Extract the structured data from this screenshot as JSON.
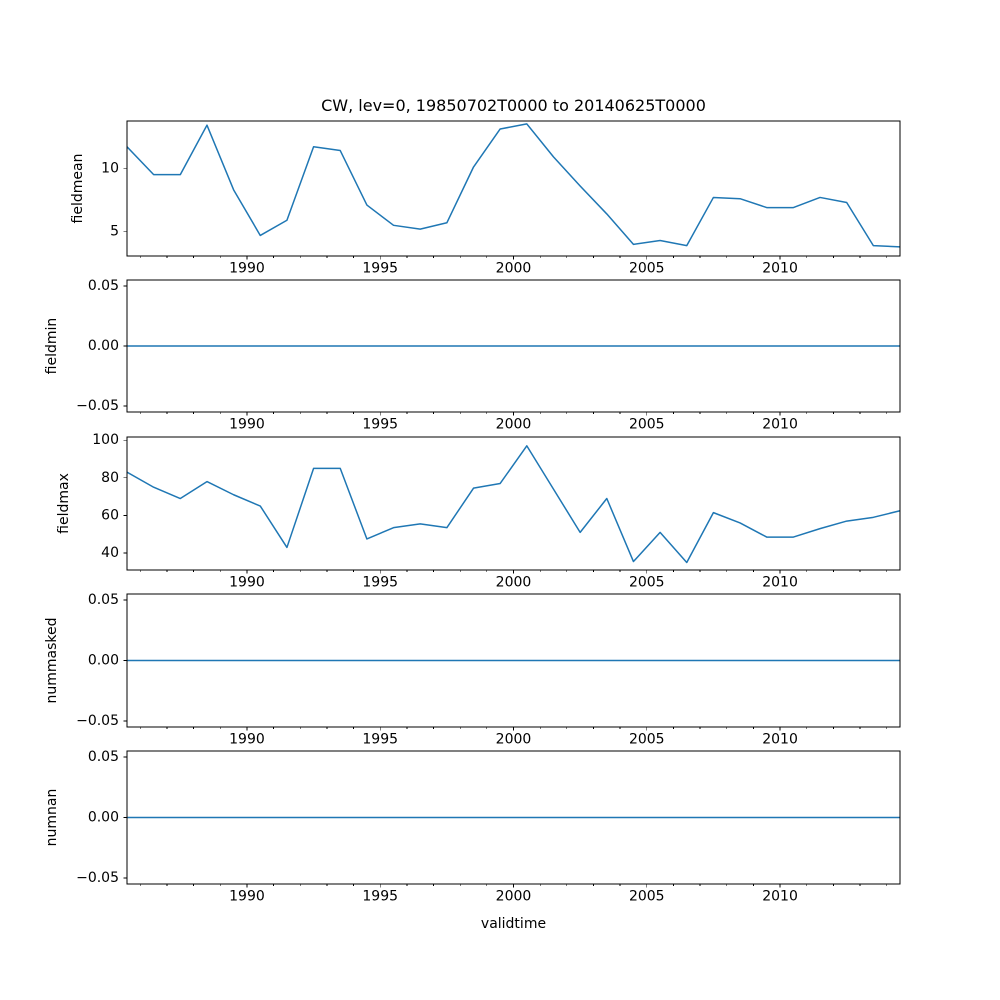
{
  "figure": {
    "title": "CW, lev=0, 19850702T0000 to 20140625T0000",
    "xlabel": "validtime"
  },
  "style": {
    "line_color": "#1f77b4",
    "axis_color": "#000000",
    "text_color": "#000000",
    "background": "#ffffff"
  },
  "chart_data": [
    {
      "type": "line",
      "name": "fieldmean",
      "ylabel": "fieldmean",
      "xlim": [
        1985.5,
        2014.5
      ],
      "xticks": [
        1990,
        1995,
        2000,
        2005,
        2010
      ],
      "xtick_labels": [
        "1990",
        "1995",
        "2000",
        "2005",
        "2010"
      ],
      "minor_xticks_every": 1,
      "ylim": [
        3.08,
        13.73
      ],
      "yticks": [
        5,
        10
      ],
      "ytick_labels": [
        "5",
        "10"
      ],
      "grid": false,
      "x": [
        1985.5,
        1986.5,
        1987.5,
        1988.5,
        1989.5,
        1990.5,
        1991.5,
        1992.5,
        1993.5,
        1994.5,
        1995.5,
        1996.5,
        1997.5,
        1998.5,
        1999.5,
        2000.5,
        2001.5,
        2002.5,
        2003.5,
        2004.5,
        2005.5,
        2006.5,
        2007.5,
        2008.5,
        2009.5,
        2010.5,
        2011.5,
        2012.5,
        2013.5,
        2014.5
      ],
      "values": [
        11.7,
        9.5,
        9.5,
        13.4,
        8.3,
        4.7,
        5.9,
        11.7,
        11.4,
        7.1,
        5.5,
        5.2,
        5.7,
        10.1,
        13.1,
        13.5,
        10.9,
        8.6,
        6.4,
        4.0,
        4.3,
        3.9,
        7.7,
        7.6,
        6.9,
        6.9,
        7.7,
        7.3,
        3.9,
        3.8
      ]
    },
    {
      "type": "line",
      "name": "fieldmin",
      "ylabel": "fieldmin",
      "xlim": [
        1985.5,
        2014.5
      ],
      "xticks": [
        1990,
        1995,
        2000,
        2005,
        2010
      ],
      "xtick_labels": [
        "1990",
        "1995",
        "2000",
        "2005",
        "2010"
      ],
      "minor_xticks_every": 1,
      "ylim": [
        -0.055,
        0.055
      ],
      "yticks": [
        -0.05,
        0.0,
        0.05
      ],
      "ytick_labels": [
        "−0.05",
        "0.00",
        "0.05"
      ],
      "grid": false,
      "x": [
        1985.5,
        1986.5,
        1987.5,
        1988.5,
        1989.5,
        1990.5,
        1991.5,
        1992.5,
        1993.5,
        1994.5,
        1995.5,
        1996.5,
        1997.5,
        1998.5,
        1999.5,
        2000.5,
        2001.5,
        2002.5,
        2003.5,
        2004.5,
        2005.5,
        2006.5,
        2007.5,
        2008.5,
        2009.5,
        2010.5,
        2011.5,
        2012.5,
        2013.5,
        2014.5
      ],
      "values": [
        0,
        0,
        0,
        0,
        0,
        0,
        0,
        0,
        0,
        0,
        0,
        0,
        0,
        0,
        0,
        0,
        0,
        0,
        0,
        0,
        0,
        0,
        0,
        0,
        0,
        0,
        0,
        0,
        0,
        0
      ]
    },
    {
      "type": "line",
      "name": "fieldmax",
      "ylabel": "fieldmax",
      "xlim": [
        1985.5,
        2014.5
      ],
      "xticks": [
        1990,
        1995,
        2000,
        2005,
        2010
      ],
      "xtick_labels": [
        "1990",
        "1995",
        "2000",
        "2005",
        "2010"
      ],
      "minor_xticks_every": 1,
      "ylim": [
        31.0,
        101.7
      ],
      "yticks": [
        40,
        60,
        80,
        100
      ],
      "ytick_labels": [
        "40",
        "60",
        "80",
        "100"
      ],
      "grid": false,
      "x": [
        1985.5,
        1986.5,
        1987.5,
        1988.5,
        1989.5,
        1990.5,
        1991.5,
        1992.5,
        1993.5,
        1994.5,
        1995.5,
        1996.5,
        1997.5,
        1998.5,
        1999.5,
        2000.5,
        2001.5,
        2002.5,
        2003.5,
        2004.5,
        2005.5,
        2006.5,
        2007.5,
        2008.5,
        2009.5,
        2010.5,
        2011.5,
        2012.5,
        2013.5,
        2014.5
      ],
      "values": [
        83,
        75,
        69,
        78,
        71,
        65,
        43,
        85,
        85,
        47.5,
        53.5,
        55.5,
        53.5,
        74.5,
        77,
        97,
        74,
        51,
        69,
        35.5,
        51,
        35,
        61.5,
        56,
        48.5,
        48.5,
        53,
        57,
        59,
        62.5
      ]
    },
    {
      "type": "line",
      "name": "nummasked",
      "ylabel": "nummasked",
      "xlim": [
        1985.5,
        2014.5
      ],
      "xticks": [
        1990,
        1995,
        2000,
        2005,
        2010
      ],
      "xtick_labels": [
        "1990",
        "1995",
        "2000",
        "2005",
        "2010"
      ],
      "minor_xticks_every": 1,
      "ylim": [
        -0.055,
        0.055
      ],
      "yticks": [
        -0.05,
        0.0,
        0.05
      ],
      "ytick_labels": [
        "−0.05",
        "0.00",
        "0.05"
      ],
      "grid": false,
      "x": [
        1985.5,
        1986.5,
        1987.5,
        1988.5,
        1989.5,
        1990.5,
        1991.5,
        1992.5,
        1993.5,
        1994.5,
        1995.5,
        1996.5,
        1997.5,
        1998.5,
        1999.5,
        2000.5,
        2001.5,
        2002.5,
        2003.5,
        2004.5,
        2005.5,
        2006.5,
        2007.5,
        2008.5,
        2009.5,
        2010.5,
        2011.5,
        2012.5,
        2013.5,
        2014.5
      ],
      "values": [
        0,
        0,
        0,
        0,
        0,
        0,
        0,
        0,
        0,
        0,
        0,
        0,
        0,
        0,
        0,
        0,
        0,
        0,
        0,
        0,
        0,
        0,
        0,
        0,
        0,
        0,
        0,
        0,
        0,
        0
      ]
    },
    {
      "type": "line",
      "name": "numnan",
      "ylabel": "numnan",
      "xlim": [
        1985.5,
        2014.5
      ],
      "xticks": [
        1990,
        1995,
        2000,
        2005,
        2010
      ],
      "xtick_labels": [
        "1990",
        "1995",
        "2000",
        "2005",
        "2010"
      ],
      "minor_xticks_every": 1,
      "ylim": [
        -0.055,
        0.055
      ],
      "yticks": [
        -0.05,
        0.0,
        0.05
      ],
      "ytick_labels": [
        "−0.05",
        "0.00",
        "0.05"
      ],
      "grid": false,
      "x": [
        1985.5,
        1986.5,
        1987.5,
        1988.5,
        1989.5,
        1990.5,
        1991.5,
        1992.5,
        1993.5,
        1994.5,
        1995.5,
        1996.5,
        1997.5,
        1998.5,
        1999.5,
        2000.5,
        2001.5,
        2002.5,
        2003.5,
        2004.5,
        2005.5,
        2006.5,
        2007.5,
        2008.5,
        2009.5,
        2010.5,
        2011.5,
        2012.5,
        2013.5,
        2014.5
      ],
      "values": [
        0,
        0,
        0,
        0,
        0,
        0,
        0,
        0,
        0,
        0,
        0,
        0,
        0,
        0,
        0,
        0,
        0,
        0,
        0,
        0,
        0,
        0,
        0,
        0,
        0,
        0,
        0,
        0,
        0,
        0
      ]
    }
  ]
}
